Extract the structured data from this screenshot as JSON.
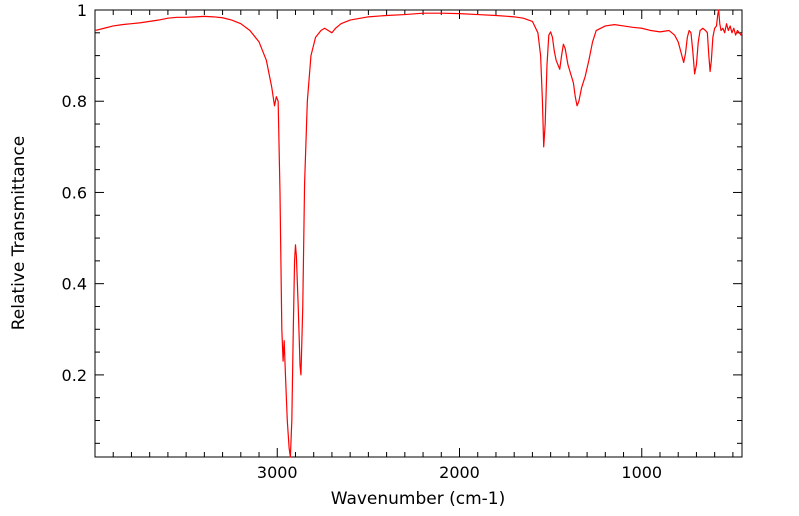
{
  "chart_data": {
    "type": "line",
    "title": "",
    "xlabel": "Wavenumber (cm-1)",
    "ylabel": "Relative Transmittance",
    "xlim": [
      4000,
      450
    ],
    "ylim": [
      0.02,
      1.0
    ],
    "x_ticks": [
      {
        "value": 3000,
        "label": "3000"
      },
      {
        "value": 2000,
        "label": "2000"
      },
      {
        "value": 1000,
        "label": "1000"
      }
    ],
    "y_ticks": [
      {
        "value": 0.2,
        "label": "0.2"
      },
      {
        "value": 0.4,
        "label": "0.4"
      },
      {
        "value": 0.6,
        "label": "0.6"
      },
      {
        "value": 0.8,
        "label": "0.8"
      },
      {
        "value": 1.0,
        "label": "1"
      }
    ],
    "grid": false,
    "series": [
      {
        "color": "#ff0000",
        "points": [
          [
            4000,
            0.955
          ],
          [
            3950,
            0.96
          ],
          [
            3900,
            0.965
          ],
          [
            3850,
            0.968
          ],
          [
            3800,
            0.97
          ],
          [
            3750,
            0.972
          ],
          [
            3700,
            0.975
          ],
          [
            3650,
            0.978
          ],
          [
            3600,
            0.982
          ],
          [
            3550,
            0.984
          ],
          [
            3500,
            0.984
          ],
          [
            3450,
            0.985
          ],
          [
            3400,
            0.986
          ],
          [
            3350,
            0.985
          ],
          [
            3300,
            0.983
          ],
          [
            3250,
            0.978
          ],
          [
            3200,
            0.97
          ],
          [
            3150,
            0.955
          ],
          [
            3100,
            0.93
          ],
          [
            3060,
            0.89
          ],
          [
            3030,
            0.83
          ],
          [
            3015,
            0.79
          ],
          [
            3005,
            0.81
          ],
          [
            2995,
            0.8
          ],
          [
            2985,
            0.6
          ],
          [
            2975,
            0.3
          ],
          [
            2968,
            0.23
          ],
          [
            2962,
            0.275
          ],
          [
            2955,
            0.2
          ],
          [
            2945,
            0.1
          ],
          [
            2935,
            0.04
          ],
          [
            2928,
            0.02
          ],
          [
            2920,
            0.1
          ],
          [
            2912,
            0.3
          ],
          [
            2905,
            0.45
          ],
          [
            2900,
            0.485
          ],
          [
            2895,
            0.46
          ],
          [
            2885,
            0.35
          ],
          [
            2875,
            0.22
          ],
          [
            2870,
            0.2
          ],
          [
            2860,
            0.35
          ],
          [
            2850,
            0.62
          ],
          [
            2835,
            0.8
          ],
          [
            2815,
            0.9
          ],
          [
            2790,
            0.94
          ],
          [
            2760,
            0.955
          ],
          [
            2740,
            0.96
          ],
          [
            2720,
            0.955
          ],
          [
            2700,
            0.95
          ],
          [
            2680,
            0.96
          ],
          [
            2650,
            0.97
          ],
          [
            2600,
            0.978
          ],
          [
            2500,
            0.985
          ],
          [
            2400,
            0.988
          ],
          [
            2300,
            0.99
          ],
          [
            2200,
            0.993
          ],
          [
            2100,
            0.993
          ],
          [
            2000,
            0.992
          ],
          [
            1900,
            0.99
          ],
          [
            1800,
            0.988
          ],
          [
            1700,
            0.985
          ],
          [
            1650,
            0.982
          ],
          [
            1600,
            0.975
          ],
          [
            1570,
            0.95
          ],
          [
            1555,
            0.9
          ],
          [
            1545,
            0.8
          ],
          [
            1538,
            0.7
          ],
          [
            1530,
            0.75
          ],
          [
            1520,
            0.88
          ],
          [
            1510,
            0.945
          ],
          [
            1500,
            0.952
          ],
          [
            1490,
            0.94
          ],
          [
            1480,
            0.91
          ],
          [
            1470,
            0.89
          ],
          [
            1460,
            0.88
          ],
          [
            1450,
            0.87
          ],
          [
            1440,
            0.9
          ],
          [
            1430,
            0.925
          ],
          [
            1420,
            0.915
          ],
          [
            1405,
            0.88
          ],
          [
            1390,
            0.86
          ],
          [
            1375,
            0.84
          ],
          [
            1365,
            0.81
          ],
          [
            1355,
            0.79
          ],
          [
            1345,
            0.8
          ],
          [
            1330,
            0.83
          ],
          [
            1310,
            0.855
          ],
          [
            1290,
            0.89
          ],
          [
            1270,
            0.93
          ],
          [
            1250,
            0.955
          ],
          [
            1200,
            0.965
          ],
          [
            1150,
            0.968
          ],
          [
            1100,
            0.965
          ],
          [
            1050,
            0.962
          ],
          [
            1000,
            0.96
          ],
          [
            950,
            0.955
          ],
          [
            900,
            0.952
          ],
          [
            850,
            0.955
          ],
          [
            820,
            0.945
          ],
          [
            800,
            0.93
          ],
          [
            780,
            0.9
          ],
          [
            770,
            0.885
          ],
          [
            760,
            0.905
          ],
          [
            750,
            0.94
          ],
          [
            740,
            0.955
          ],
          [
            730,
            0.95
          ],
          [
            720,
            0.91
          ],
          [
            710,
            0.86
          ],
          [
            700,
            0.88
          ],
          [
            690,
            0.93
          ],
          [
            680,
            0.955
          ],
          [
            665,
            0.96
          ],
          [
            650,
            0.955
          ],
          [
            640,
            0.95
          ],
          [
            632,
            0.9
          ],
          [
            625,
            0.865
          ],
          [
            618,
            0.89
          ],
          [
            610,
            0.94
          ],
          [
            600,
            0.96
          ],
          [
            590,
            0.965
          ],
          [
            583,
            0.99
          ],
          [
            578,
            1.0
          ],
          [
            572,
            0.97
          ],
          [
            565,
            0.955
          ],
          [
            555,
            0.96
          ],
          [
            545,
            0.95
          ],
          [
            535,
            0.97
          ],
          [
            525,
            0.955
          ],
          [
            515,
            0.965
          ],
          [
            505,
            0.95
          ],
          [
            495,
            0.96
          ],
          [
            485,
            0.945
          ],
          [
            475,
            0.955
          ],
          [
            465,
            0.95
          ],
          [
            455,
            0.945
          ],
          [
            450,
            0.95
          ]
        ]
      }
    ]
  }
}
